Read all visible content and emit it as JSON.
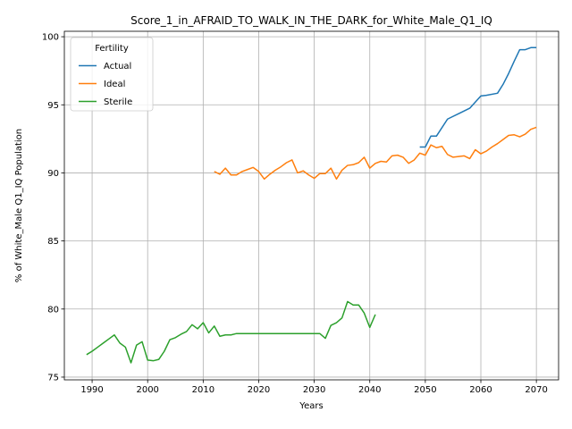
{
  "chart_data": {
    "type": "line",
    "title": "Score_1_in_AFRAID_TO_WALK_IN_THE_DARK_for_White_Male_Q1_IQ",
    "xlabel": "Years",
    "ylabel": "% of White_Male Q1_IQ Population",
    "xlim": [
      1985,
      2074
    ],
    "ylim": [
      74.8,
      100.4
    ],
    "x_ticks": [
      1990,
      2000,
      2010,
      2020,
      2030,
      2040,
      2050,
      2060,
      2070
    ],
    "y_ticks": [
      75,
      80,
      85,
      90,
      95,
      100
    ],
    "grid": true,
    "legend": {
      "title": "Fertility",
      "placement": "top-left"
    },
    "series": [
      {
        "name": "Actual",
        "color": "#1f77b4",
        "x": [
          2049,
          2050,
          2051,
          2052,
          2054,
          2056,
          2058,
          2060,
          2061,
          2063,
          2064,
          2065,
          2066,
          2067,
          2068,
          2069,
          2070
        ],
        "y": [
          91.9,
          91.9,
          92.7,
          92.7,
          93.95,
          94.35,
          94.75,
          95.65,
          95.7,
          95.85,
          96.5,
          97.3,
          98.2,
          99.05,
          99.05,
          99.2,
          99.2
        ]
      },
      {
        "name": "Ideal",
        "color": "#ff7f0e",
        "x": [
          2012,
          2013,
          2014,
          2015,
          2016,
          2017,
          2018,
          2019,
          2020,
          2021,
          2022,
          2023,
          2024,
          2025,
          2026,
          2027,
          2028,
          2029,
          2030,
          2031,
          2032,
          2033,
          2034,
          2035,
          2036,
          2037,
          2038,
          2039,
          2040,
          2041,
          2042,
          2043,
          2044,
          2045,
          2046,
          2047,
          2048,
          2049,
          2050,
          2051,
          2052,
          2053,
          2054,
          2055,
          2056,
          2057,
          2058,
          2059,
          2060,
          2061,
          2062,
          2063,
          2064,
          2065,
          2066,
          2067,
          2068,
          2069,
          2070
        ],
        "y": [
          90.1,
          89.9,
          90.35,
          89.85,
          89.85,
          90.1,
          90.25,
          90.4,
          90.1,
          89.55,
          89.9,
          90.2,
          90.45,
          90.75,
          90.95,
          90.0,
          90.15,
          89.85,
          89.6,
          89.95,
          89.95,
          90.35,
          89.55,
          90.2,
          90.55,
          90.6,
          90.75,
          91.15,
          90.35,
          90.7,
          90.85,
          90.8,
          91.25,
          91.3,
          91.15,
          90.7,
          90.95,
          91.45,
          91.3,
          92.05,
          91.85,
          91.95,
          91.35,
          91.15,
          91.2,
          91.25,
          91.05,
          91.7,
          91.4,
          91.6,
          91.9,
          92.15,
          92.45,
          92.75,
          92.8,
          92.65,
          92.85,
          93.2,
          93.35
        ]
      },
      {
        "name": "Sterile",
        "color": "#2ca02c",
        "x": [
          1989,
          1990,
          1991,
          1992,
          1993,
          1994,
          1995,
          1996,
          1997,
          1998,
          1999,
          2000,
          2001,
          2002,
          2003,
          2004,
          2005,
          2006,
          2007,
          2008,
          2009,
          2010,
          2011,
          2012,
          2013,
          2014,
          2015,
          2016,
          2017,
          2018,
          2019,
          2020,
          2021,
          2022,
          2023,
          2024,
          2025,
          2026,
          2027,
          2028,
          2029,
          2030,
          2031,
          2032,
          2033,
          2034,
          2035,
          2036,
          2037,
          2038,
          2039,
          2040,
          2041
        ],
        "y": [
          76.65,
          76.9,
          77.2,
          77.5,
          77.8,
          78.1,
          77.5,
          77.2,
          76.05,
          77.35,
          77.6,
          76.25,
          76.2,
          76.3,
          76.9,
          77.75,
          77.9,
          78.15,
          78.35,
          78.85,
          78.55,
          79.0,
          78.25,
          78.75,
          78.0,
          78.1,
          78.1,
          78.2,
          78.2,
          78.2,
          78.2,
          78.2,
          78.2,
          78.2,
          78.2,
          78.2,
          78.2,
          78.2,
          78.2,
          78.2,
          78.2,
          78.2,
          78.2,
          77.85,
          78.8,
          79.0,
          79.35,
          80.55,
          80.3,
          80.3,
          79.7,
          78.65,
          79.6
        ]
      }
    ]
  }
}
